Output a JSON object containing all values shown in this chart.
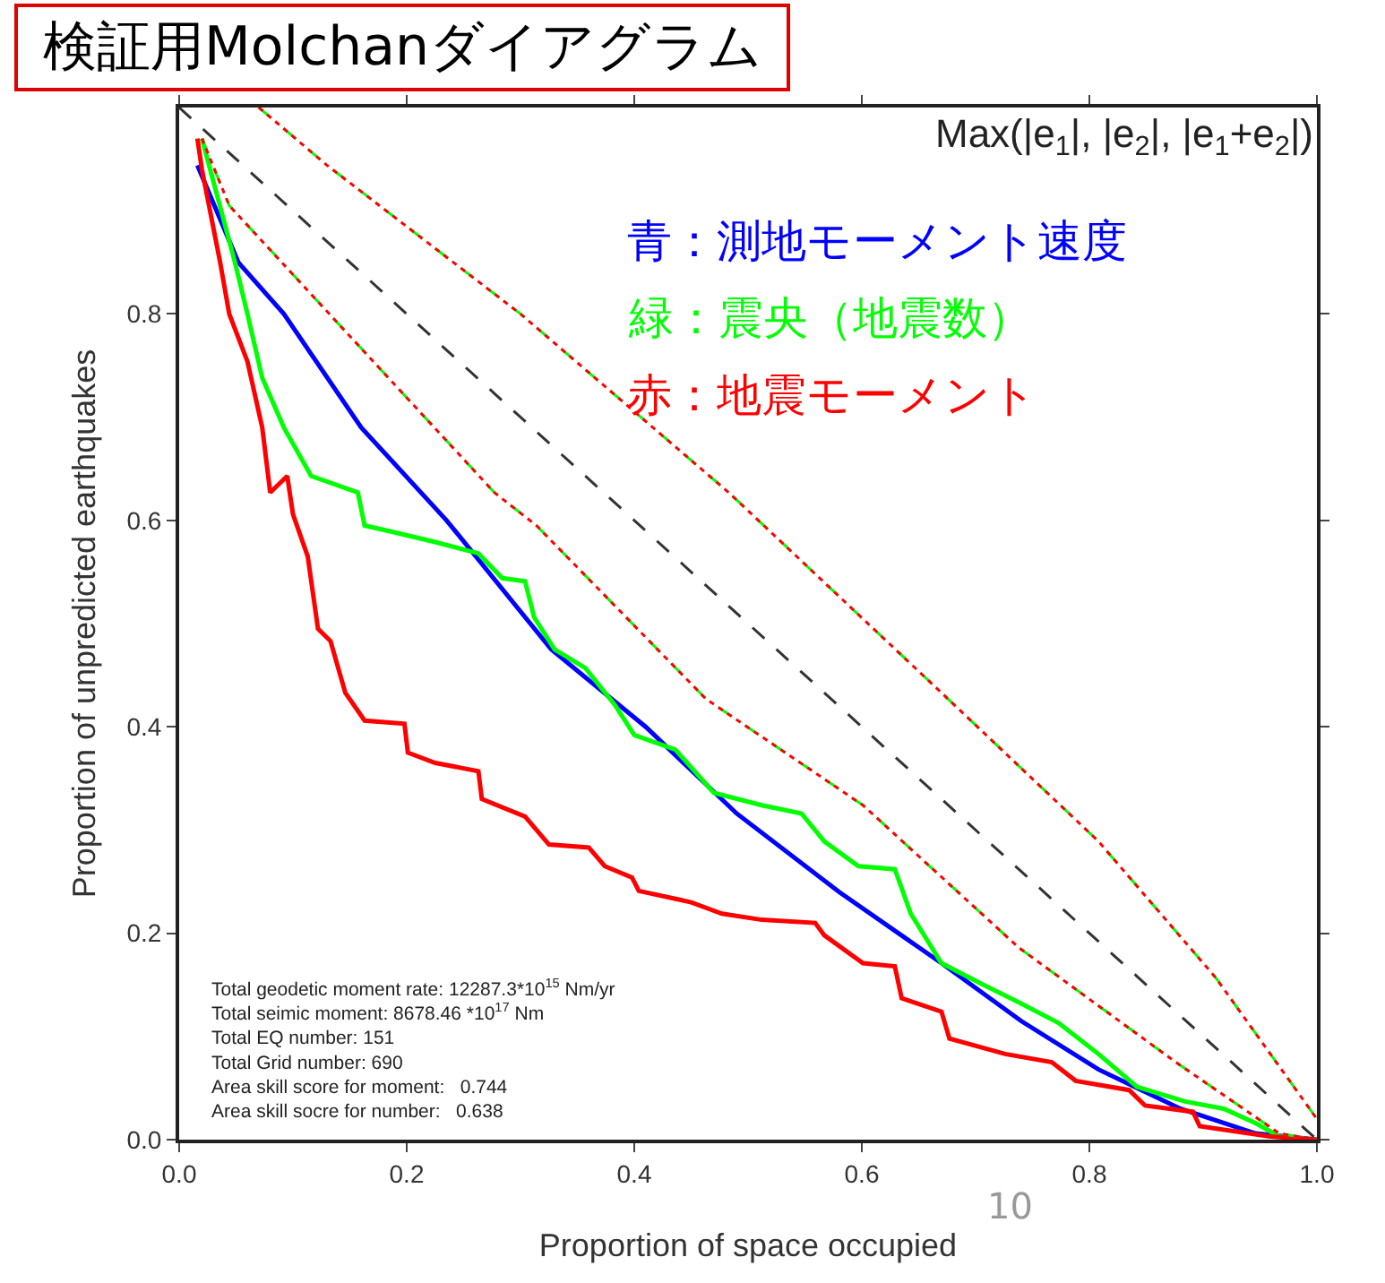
{
  "chart_data": {
    "type": "line",
    "title": "検証用Molchanダイアグラム",
    "subtitle": "Max(|e$_{1}$|, |e$_{2}$|, |e$_{1}$+e$_{2}$|)",
    "xlabel": "Proportion of space occupied",
    "ylabel": "Proportion of unpredicted earthquakes",
    "xlim": [
      0,
      1
    ],
    "ylim": [
      0,
      1
    ],
    "xticks": [
      {
        "value": 0,
        "label": "0.0"
      },
      0.2,
      0.4,
      0.6,
      0.8,
      {
        "value": 1,
        "label": "1.0"
      }
    ],
    "yticks": [
      {
        "value": 0,
        "label": "0.0"
      },
      0.2,
      0.4,
      0.6,
      0.8
    ],
    "grid": false,
    "marker": "none",
    "series": [
      {
        "name": "青：測地モーメント速度",
        "color": "#0000ff",
        "line_style": "solid",
        "x": [
          0.016,
          0.052,
          0.092,
          0.16,
          0.235,
          0.327,
          0.41,
          0.49,
          0.58,
          0.67,
          0.74,
          0.808,
          0.88,
          0.946,
          1.0
        ],
        "values": [
          0.944,
          0.85,
          0.8,
          0.69,
          0.6,
          0.475,
          0.4,
          0.316,
          0.24,
          0.171,
          0.115,
          0.068,
          0.03,
          0.006,
          0
        ]
      },
      {
        "name": "緑：震央（地震数）",
        "color": "#00ff00",
        "line_style": "solid",
        "x": [
          0.02,
          0.049,
          0.06,
          0.073,
          0.092,
          0.116,
          0.157,
          0.163,
          0.187,
          0.225,
          0.263,
          0.284,
          0.304,
          0.312,
          0.33,
          0.357,
          0.383,
          0.4,
          0.436,
          0.47,
          0.512,
          0.547,
          0.567,
          0.597,
          0.629,
          0.643,
          0.67,
          0.705,
          0.738,
          0.773,
          0.808,
          0.842,
          0.884,
          0.918,
          0.946,
          0.967,
          1.0
        ],
        "values": [
          0.97,
          0.85,
          0.8,
          0.738,
          0.69,
          0.643,
          0.627,
          0.595,
          0.589,
          0.579,
          0.568,
          0.544,
          0.541,
          0.506,
          0.475,
          0.457,
          0.421,
          0.392,
          0.378,
          0.336,
          0.324,
          0.316,
          0.289,
          0.265,
          0.262,
          0.219,
          0.171,
          0.151,
          0.133,
          0.113,
          0.083,
          0.051,
          0.037,
          0.03,
          0.016,
          0.003,
          0
        ]
      },
      {
        "name": "赤：地震モーメント",
        "color": "#ff0000",
        "line_style": "solid",
        "x": [
          0.016,
          0.02,
          0.036,
          0.044,
          0.06,
          0.073,
          0.08,
          0.095,
          0.1,
          0.113,
          0.122,
          0.133,
          0.146,
          0.163,
          0.198,
          0.201,
          0.225,
          0.263,
          0.266,
          0.304,
          0.325,
          0.36,
          0.374,
          0.398,
          0.404,
          0.45,
          0.477,
          0.512,
          0.559,
          0.567,
          0.601,
          0.629,
          0.635,
          0.67,
          0.677,
          0.726,
          0.767,
          0.788,
          0.835,
          0.849,
          0.891,
          0.897,
          0.959,
          1.0
        ],
        "values": [
          0.97,
          0.94,
          0.85,
          0.8,
          0.754,
          0.69,
          0.627,
          0.643,
          0.606,
          0.565,
          0.495,
          0.483,
          0.433,
          0.406,
          0.403,
          0.375,
          0.365,
          0.357,
          0.33,
          0.313,
          0.286,
          0.283,
          0.265,
          0.254,
          0.241,
          0.23,
          0.219,
          0.213,
          0.21,
          0.198,
          0.171,
          0.168,
          0.137,
          0.124,
          0.098,
          0.083,
          0.075,
          0.057,
          0.048,
          0.033,
          0.027,
          0.013,
          0.003,
          0
        ]
      },
      {
        "color": "#333333",
        "line_style": "dashed",
        "x": [
          0,
          1
        ],
        "values": [
          1,
          0
        ]
      },
      {
        "color": "#00ff00",
        "line_style": "dashed",
        "x": [
          0.07,
          0.13,
          0.3,
          0.483,
          0.67,
          0.808,
          0.911,
          1.0
        ],
        "values": [
          1.0,
          0.944,
          0.8,
          0.627,
          0.433,
          0.289,
          0.157,
          0.02
        ]
      },
      {
        "color": "#ff0000",
        "line_style": "dotted",
        "x": [
          0.07,
          0.13,
          0.3,
          0.483,
          0.67,
          0.808,
          0.911,
          1.0
        ],
        "values": [
          1.0,
          0.944,
          0.8,
          0.627,
          0.433,
          0.289,
          0.157,
          0.02
        ]
      },
      {
        "color": "#00ff00",
        "line_style": "dashed",
        "x": [
          0.02,
          0.044,
          0.277,
          0.314,
          0.463,
          0.601,
          0.738,
          0.876,
          0.967,
          1.0
        ],
        "values": [
          0.97,
          0.905,
          0.627,
          0.595,
          0.427,
          0.324,
          0.186,
          0.075,
          0.006,
          0
        ]
      },
      {
        "color": "#ff0000",
        "line_style": "dotted",
        "x": [
          0.02,
          0.044,
          0.277,
          0.314,
          0.463,
          0.601,
          0.738,
          0.876,
          0.967,
          1.0
        ],
        "values": [
          0.97,
          0.905,
          0.627,
          0.595,
          0.427,
          0.324,
          0.186,
          0.075,
          0.006,
          0
        ]
      }
    ],
    "annotations": [
      "Total geodetic moment rate: 12287.3*10$^{15}$ Nm/yr",
      "Total seimic moment: 8678.46 *10$^{17}$ Nm",
      "Total EQ number: 151",
      "Total Grid number: 690",
      "Area skill score for moment:   0.744",
      "Area skill socre for number:   0.638",
      "10"
    ]
  }
}
